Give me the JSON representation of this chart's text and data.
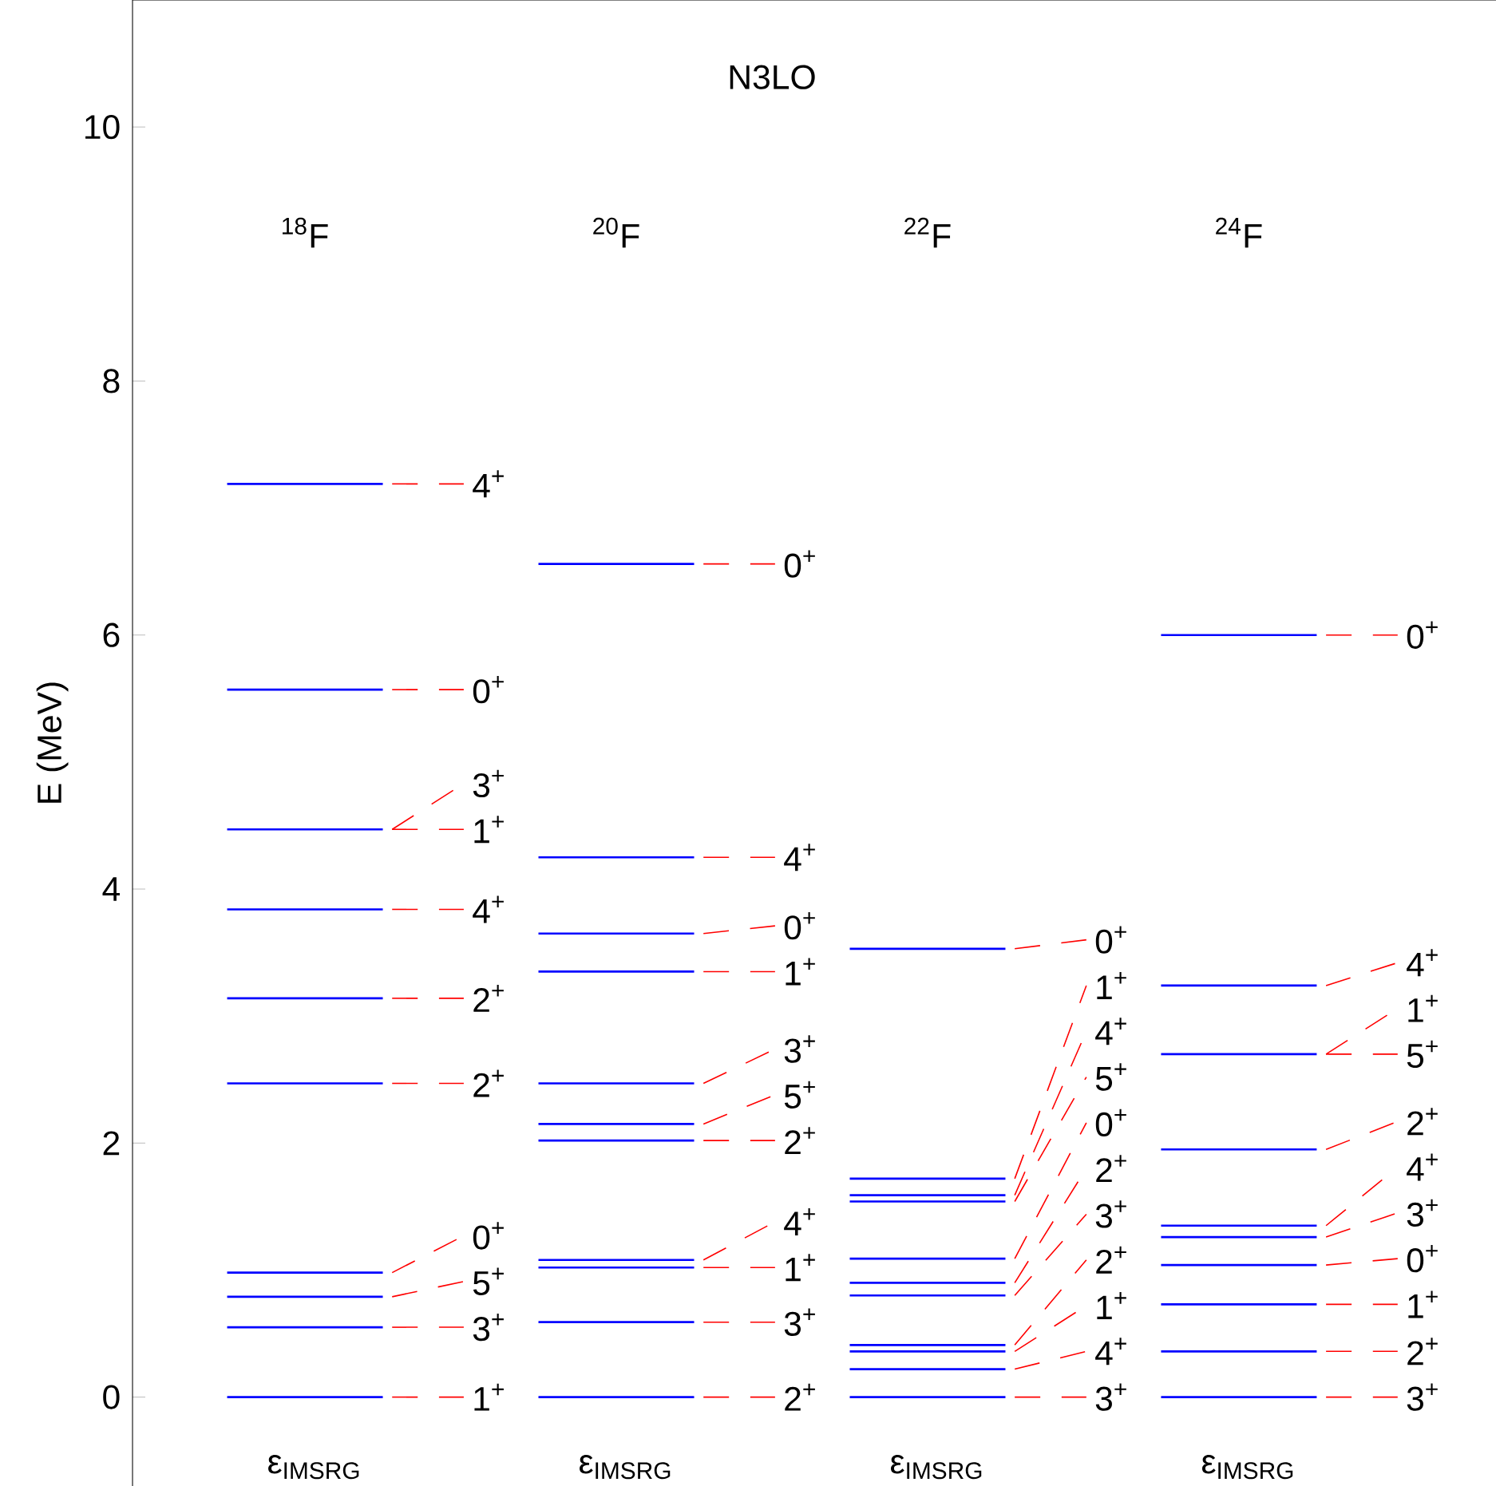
{
  "chart_data": {
    "type": "bar",
    "title": "N3LO",
    "ylabel": "E (MeV)",
    "categories": [
      "$^{18}$F",
      "$^{20}$F",
      "$^{22}$F",
      "$^{24}$F"
    ],
    "ylim": [
      -0.7,
      11
    ],
    "yticks": [
      0,
      2,
      4,
      6,
      8,
      10
    ],
    "series": [
      {
        "color": "#0000ff",
        "base": [
          0,
          0,
          0,
          0
        ],
        "values": [
          0,
          0,
          0,
          0
        ]
      },
      {
        "color": "#0000ff",
        "base": [
          0.55,
          0.59,
          0.22,
          0.36
        ],
        "values": [
          0,
          0,
          0,
          0
        ]
      },
      {
        "color": "#0000ff",
        "base": [
          0.79,
          1.02,
          0.36,
          0.73
        ],
        "values": [
          0,
          0,
          0,
          0
        ]
      },
      {
        "color": "#0000ff",
        "base": [
          0.98,
          1.08,
          0.41,
          1.04
        ],
        "values": [
          0,
          0,
          0,
          0
        ]
      },
      {
        "color": "#0000ff",
        "base": [
          2.47,
          2.02,
          0.8,
          1.26
        ],
        "values": [
          0,
          0,
          0,
          0
        ]
      },
      {
        "color": "#0000ff",
        "base": [
          3.14,
          2.15,
          0.9,
          1.35
        ],
        "values": [
          0,
          0,
          0,
          0
        ]
      },
      {
        "color": "#0000ff",
        "base": [
          3.84,
          2.47,
          1.09,
          1.95
        ],
        "values": [
          0,
          0,
          0,
          0
        ]
      },
      {
        "color": "#0000ff",
        "base": [
          4.47,
          3.35,
          1.54,
          2.7
        ],
        "values": [
          0,
          0,
          0,
          0
        ]
      },
      {
        "color": "#0000ff",
        "base": [
          null,
          3.65,
          1.59,
          null
        ],
        "values": [
          null,
          0,
          0,
          null
        ]
      },
      {
        "color": "#0000ff",
        "base": [
          5.57,
          4.25,
          1.72,
          3.24
        ],
        "values": [
          0,
          0,
          0,
          0
        ]
      },
      {
        "color": "#0000ff",
        "base": [
          7.19,
          6.56,
          3.53,
          6.0
        ],
        "values": [
          0,
          0,
          0,
          0
        ]
      }
    ],
    "annotations": [
      "ε$_{IMSRG}$",
      "ε$_{IMSRG}$",
      "ε$_{IMSRG}$",
      "ε$_{IMSRG}$",
      "1$^{+}$",
      "3$^{+}$",
      "5$^{+}$",
      "0$^{+}$",
      "2$^{+}$",
      "2$^{+}$",
      "4$^{+}$",
      "1$^{+}$",
      "3$^{+}$",
      "0$^{+}$",
      "4$^{+}$",
      "2$^{+}$",
      "3$^{+}$",
      "1$^{+}$",
      "4$^{+}$",
      "2$^{+}$",
      "5$^{+}$",
      "3$^{+}$",
      "1$^{+}$",
      "0$^{+}$",
      "4$^{+}$",
      "0$^{+}$",
      "3$^{+}$",
      "4$^{+}$",
      "1$^{+}$",
      "2$^{+}$",
      "3$^{+}$",
      "2$^{+}$",
      "0$^{+}$",
      "5$^{+}$",
      "4$^{+}$",
      "1$^{+}$",
      "0$^{+}$",
      "3$^{+}$",
      "2$^{+}$",
      "1$^{+}$",
      "0$^{+}$",
      "3$^{+}$",
      "4$^{+}$",
      "2$^{+}$",
      "5$^{+}$",
      "1$^{+}$",
      "4$^{+}$",
      "0$^{+}$"
    ]
  }
}
